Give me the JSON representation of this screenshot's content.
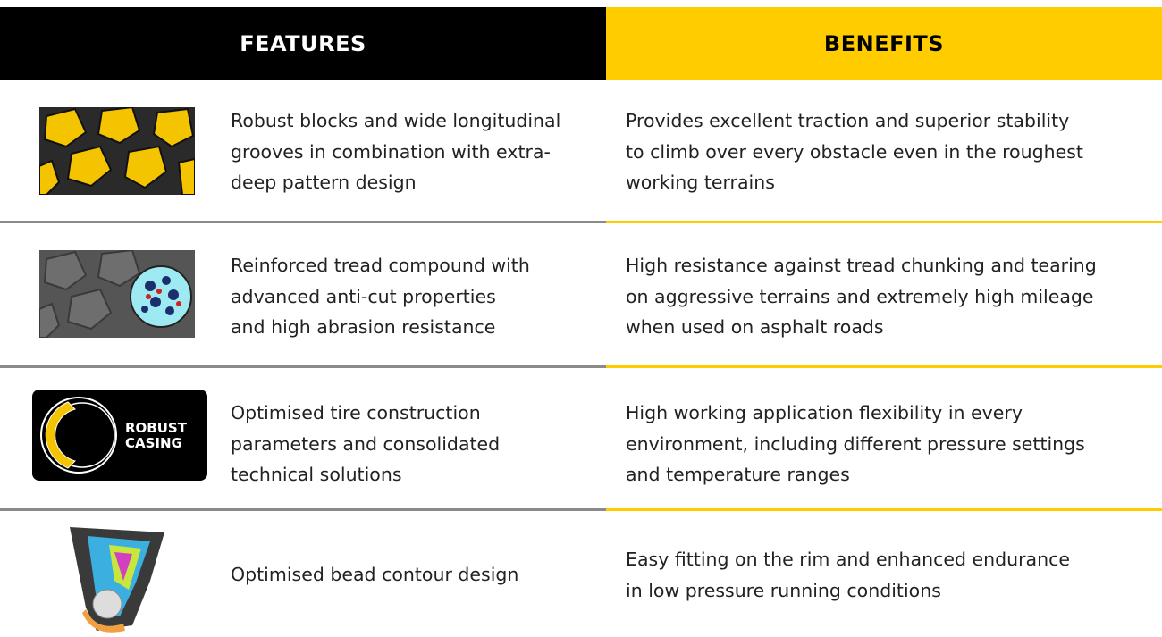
{
  "header": {
    "features": "FEATURES",
    "benefits": "BENEFITS"
  },
  "rows": [
    {
      "feature": [
        "Robust blocks and wide longitudinal",
        "grooves in combination with extra-",
        "deep pattern design"
      ],
      "benefit": [
        "Provides excellent traction and superior stability",
        "to climb over every obstacle even in the roughest",
        "working terrains"
      ]
    },
    {
      "feature": [
        "Reinforced tread compound with",
        "advanced anti-cut properties",
        "and high abrasion resistance"
      ],
      "benefit": [
        "High resistance against tread chunking and tearing",
        "on aggressive terrains and extremely high mileage",
        "when used on asphalt roads"
      ]
    },
    {
      "image_text": [
        "ROBUST",
        "CASING"
      ],
      "feature": [
        "Optimised tire construction",
        "parameters and consolidated",
        "technical solutions"
      ],
      "benefit": [
        "High working application flexibility in every",
        "environment, including different pressure settings",
        "and temperature ranges"
      ]
    },
    {
      "feature": [
        "Optimised bead contour design"
      ],
      "benefit": [
        "Easy fitting on the rim and enhanced endurance",
        "in low pressure running conditions"
      ]
    }
  ]
}
